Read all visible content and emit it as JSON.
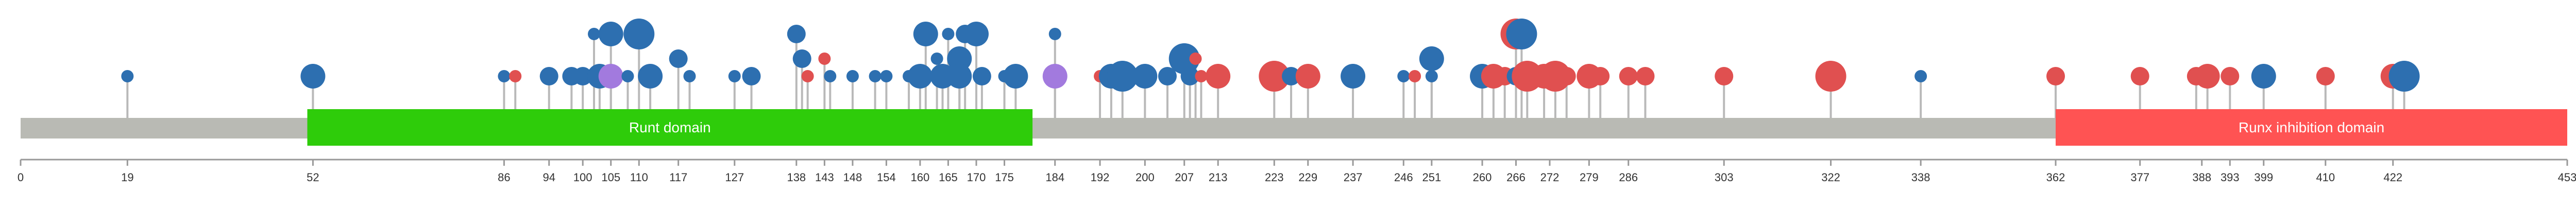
{
  "chart_data": {
    "type": "lollipop",
    "xlim": [
      0,
      453
    ],
    "ticks": [
      0,
      19,
      52,
      86,
      94,
      100,
      105,
      110,
      117,
      127,
      138,
      143,
      148,
      154,
      160,
      165,
      170,
      175,
      184,
      192,
      200,
      207,
      213,
      223,
      229,
      237,
      246,
      251,
      260,
      266,
      272,
      279,
      286,
      303,
      322,
      338,
      362,
      377,
      388,
      393,
      399,
      410,
      422,
      453
    ],
    "domains": [
      {
        "name": "Runt domain",
        "start": 51,
        "end": 180,
        "color": "#2ecc0a"
      },
      {
        "name": "Runx inhibition domain",
        "start": 362,
        "end": 453,
        "color": "#ff5353"
      }
    ],
    "colors": {
      "blue": "#2d6fb0",
      "red": "#e05050",
      "purple": "#a27ade",
      "backbone": "#b9bab4",
      "stem": "#b9b9b9",
      "axis": "#999999"
    },
    "mutations": [
      {
        "pos": 19,
        "count": 1,
        "type": "blue"
      },
      {
        "pos": 52,
        "count": 3,
        "type": "blue"
      },
      {
        "pos": 86,
        "count": 1,
        "type": "blue"
      },
      {
        "pos": 88,
        "count": 1,
        "type": "red"
      },
      {
        "pos": 94,
        "count": 2,
        "type": "blue"
      },
      {
        "pos": 98,
        "count": 2,
        "type": "blue"
      },
      {
        "pos": 100,
        "count": 2,
        "type": "blue"
      },
      {
        "pos": 103,
        "count": 3,
        "type": "blue"
      },
      {
        "pos": 105,
        "count": 3,
        "type": "purple"
      },
      {
        "pos": 102,
        "count": 1,
        "type": "blue",
        "level": 2
      },
      {
        "pos": 105,
        "count": 3,
        "type": "blue",
        "level": 2
      },
      {
        "pos": 110,
        "count": 4,
        "type": "blue",
        "level": 2
      },
      {
        "pos": 108,
        "count": 1,
        "type": "blue"
      },
      {
        "pos": 112,
        "count": 3,
        "type": "blue"
      },
      {
        "pos": 117,
        "count": 2,
        "type": "blue",
        "level": 1
      },
      {
        "pos": 119,
        "count": 1,
        "type": "blue"
      },
      {
        "pos": 127,
        "count": 1,
        "type": "blue"
      },
      {
        "pos": 130,
        "count": 2,
        "type": "blue"
      },
      {
        "pos": 138,
        "count": 2,
        "type": "blue",
        "level": 2
      },
      {
        "pos": 139,
        "count": 2,
        "type": "blue",
        "level": 1
      },
      {
        "pos": 140,
        "count": 1,
        "type": "red"
      },
      {
        "pos": 143,
        "count": 1,
        "type": "red",
        "level": 1
      },
      {
        "pos": 144,
        "count": 1,
        "type": "blue"
      },
      {
        "pos": 148,
        "count": 1,
        "type": "blue"
      },
      {
        "pos": 152,
        "count": 1,
        "type": "blue"
      },
      {
        "pos": 154,
        "count": 1,
        "type": "blue"
      },
      {
        "pos": 158,
        "count": 1,
        "type": "blue"
      },
      {
        "pos": 160,
        "count": 3,
        "type": "blue"
      },
      {
        "pos": 161,
        "count": 3,
        "type": "blue",
        "level": 2
      },
      {
        "pos": 163,
        "count": 1,
        "type": "blue",
        "level": 1
      },
      {
        "pos": 164,
        "count": 3,
        "type": "blue"
      },
      {
        "pos": 165,
        "count": 1,
        "type": "blue",
        "level": 2
      },
      {
        "pos": 167,
        "count": 3,
        "type": "blue",
        "level": 1
      },
      {
        "pos": 167,
        "count": 3,
        "type": "blue"
      },
      {
        "pos": 168,
        "count": 2,
        "type": "blue",
        "level": 2
      },
      {
        "pos": 170,
        "count": 3,
        "type": "blue",
        "level": 2
      },
      {
        "pos": 171,
        "count": 2,
        "type": "blue"
      },
      {
        "pos": 175,
        "count": 1,
        "type": "blue"
      },
      {
        "pos": 177,
        "count": 3,
        "type": "blue"
      },
      {
        "pos": 184,
        "count": 3,
        "type": "purple"
      },
      {
        "pos": 184,
        "count": 1,
        "type": "blue",
        "level": 2
      },
      {
        "pos": 192,
        "count": 1,
        "type": "red"
      },
      {
        "pos": 194,
        "count": 3,
        "type": "blue"
      },
      {
        "pos": 196,
        "count": 4,
        "type": "blue"
      },
      {
        "pos": 200,
        "count": 3,
        "type": "blue"
      },
      {
        "pos": 204,
        "count": 2,
        "type": "blue"
      },
      {
        "pos": 207,
        "count": 4,
        "type": "blue",
        "level": 1
      },
      {
        "pos": 208,
        "count": 2,
        "type": "blue"
      },
      {
        "pos": 209,
        "count": 1,
        "type": "red",
        "level": 1
      },
      {
        "pos": 210,
        "count": 1,
        "type": "red"
      },
      {
        "pos": 213,
        "count": 3,
        "type": "red"
      },
      {
        "pos": 223,
        "count": 4,
        "type": "red"
      },
      {
        "pos": 226,
        "count": 2,
        "type": "blue"
      },
      {
        "pos": 229,
        "count": 3,
        "type": "red"
      },
      {
        "pos": 237,
        "count": 3,
        "type": "blue"
      },
      {
        "pos": 246,
        "count": 1,
        "type": "blue"
      },
      {
        "pos": 248,
        "count": 1,
        "type": "red"
      },
      {
        "pos": 251,
        "count": 3,
        "type": "blue",
        "level": 1
      },
      {
        "pos": 251,
        "count": 1,
        "type": "blue"
      },
      {
        "pos": 260,
        "count": 3,
        "type": "blue"
      },
      {
        "pos": 262,
        "count": 3,
        "type": "red"
      },
      {
        "pos": 264,
        "count": 2,
        "type": "red"
      },
      {
        "pos": 266,
        "count": 4,
        "type": "red",
        "level": 2
      },
      {
        "pos": 267,
        "count": 4,
        "type": "blue",
        "level": 2
      },
      {
        "pos": 266,
        "count": 2,
        "type": "blue"
      },
      {
        "pos": 268,
        "count": 4,
        "type": "red"
      },
      {
        "pos": 271,
        "count": 3,
        "type": "red"
      },
      {
        "pos": 273,
        "count": 4,
        "type": "red"
      },
      {
        "pos": 275,
        "count": 2,
        "type": "red"
      },
      {
        "pos": 279,
        "count": 3,
        "type": "red"
      },
      {
        "pos": 281,
        "count": 2,
        "type": "red"
      },
      {
        "pos": 286,
        "count": 2,
        "type": "red"
      },
      {
        "pos": 289,
        "count": 2,
        "type": "red"
      },
      {
        "pos": 303,
        "count": 2,
        "type": "red"
      },
      {
        "pos": 322,
        "count": 4,
        "type": "red"
      },
      {
        "pos": 338,
        "count": 1,
        "type": "blue"
      },
      {
        "pos": 362,
        "count": 2,
        "type": "red"
      },
      {
        "pos": 377,
        "count": 2,
        "type": "red"
      },
      {
        "pos": 387,
        "count": 2,
        "type": "red"
      },
      {
        "pos": 389,
        "count": 3,
        "type": "red"
      },
      {
        "pos": 393,
        "count": 2,
        "type": "red"
      },
      {
        "pos": 399,
        "count": 3,
        "type": "blue"
      },
      {
        "pos": 410,
        "count": 2,
        "type": "red"
      },
      {
        "pos": 422,
        "count": 3,
        "type": "red"
      },
      {
        "pos": 424,
        "count": 4,
        "type": "blue"
      }
    ]
  }
}
